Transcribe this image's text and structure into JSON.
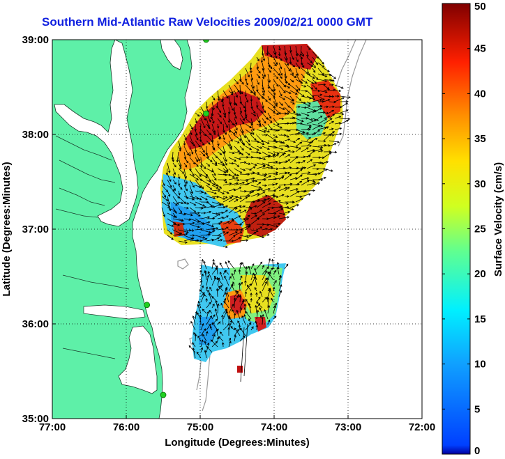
{
  "title": "Southern Mid-Atlantic Raw Velocities 2009/02/21 0000 GMT",
  "map": {
    "x_axis_label": "Longitude (Degrees:Minutes)",
    "y_axis_label": "Latitude (Degrees:Minutes)",
    "lon_ticks": [
      "77:00",
      "76:00",
      "75:00",
      "74:00",
      "73:00",
      "72:00"
    ],
    "lat_ticks": [
      "39:00",
      "38:00",
      "37:00",
      "36:00",
      "35:00"
    ],
    "lon_range": [
      -77,
      -72
    ],
    "lat_range": [
      35,
      39
    ],
    "land_color": "#5ef0a8",
    "grid": "dotted"
  },
  "colorbar": {
    "label": "Surface Velocity (cm/s)",
    "ticks": [
      "0",
      "5",
      "10",
      "15",
      "20",
      "25",
      "30",
      "35",
      "40",
      "45",
      "50"
    ],
    "range": [
      0,
      50
    ],
    "colormap": "jet"
  },
  "stations": [
    {
      "lon": -74.92,
      "lat": 39.0
    },
    {
      "lon": -74.92,
      "lat": 38.22
    },
    {
      "lon": -75.72,
      "lat": 36.2
    },
    {
      "lon": -75.5,
      "lat": 35.25
    }
  ]
}
